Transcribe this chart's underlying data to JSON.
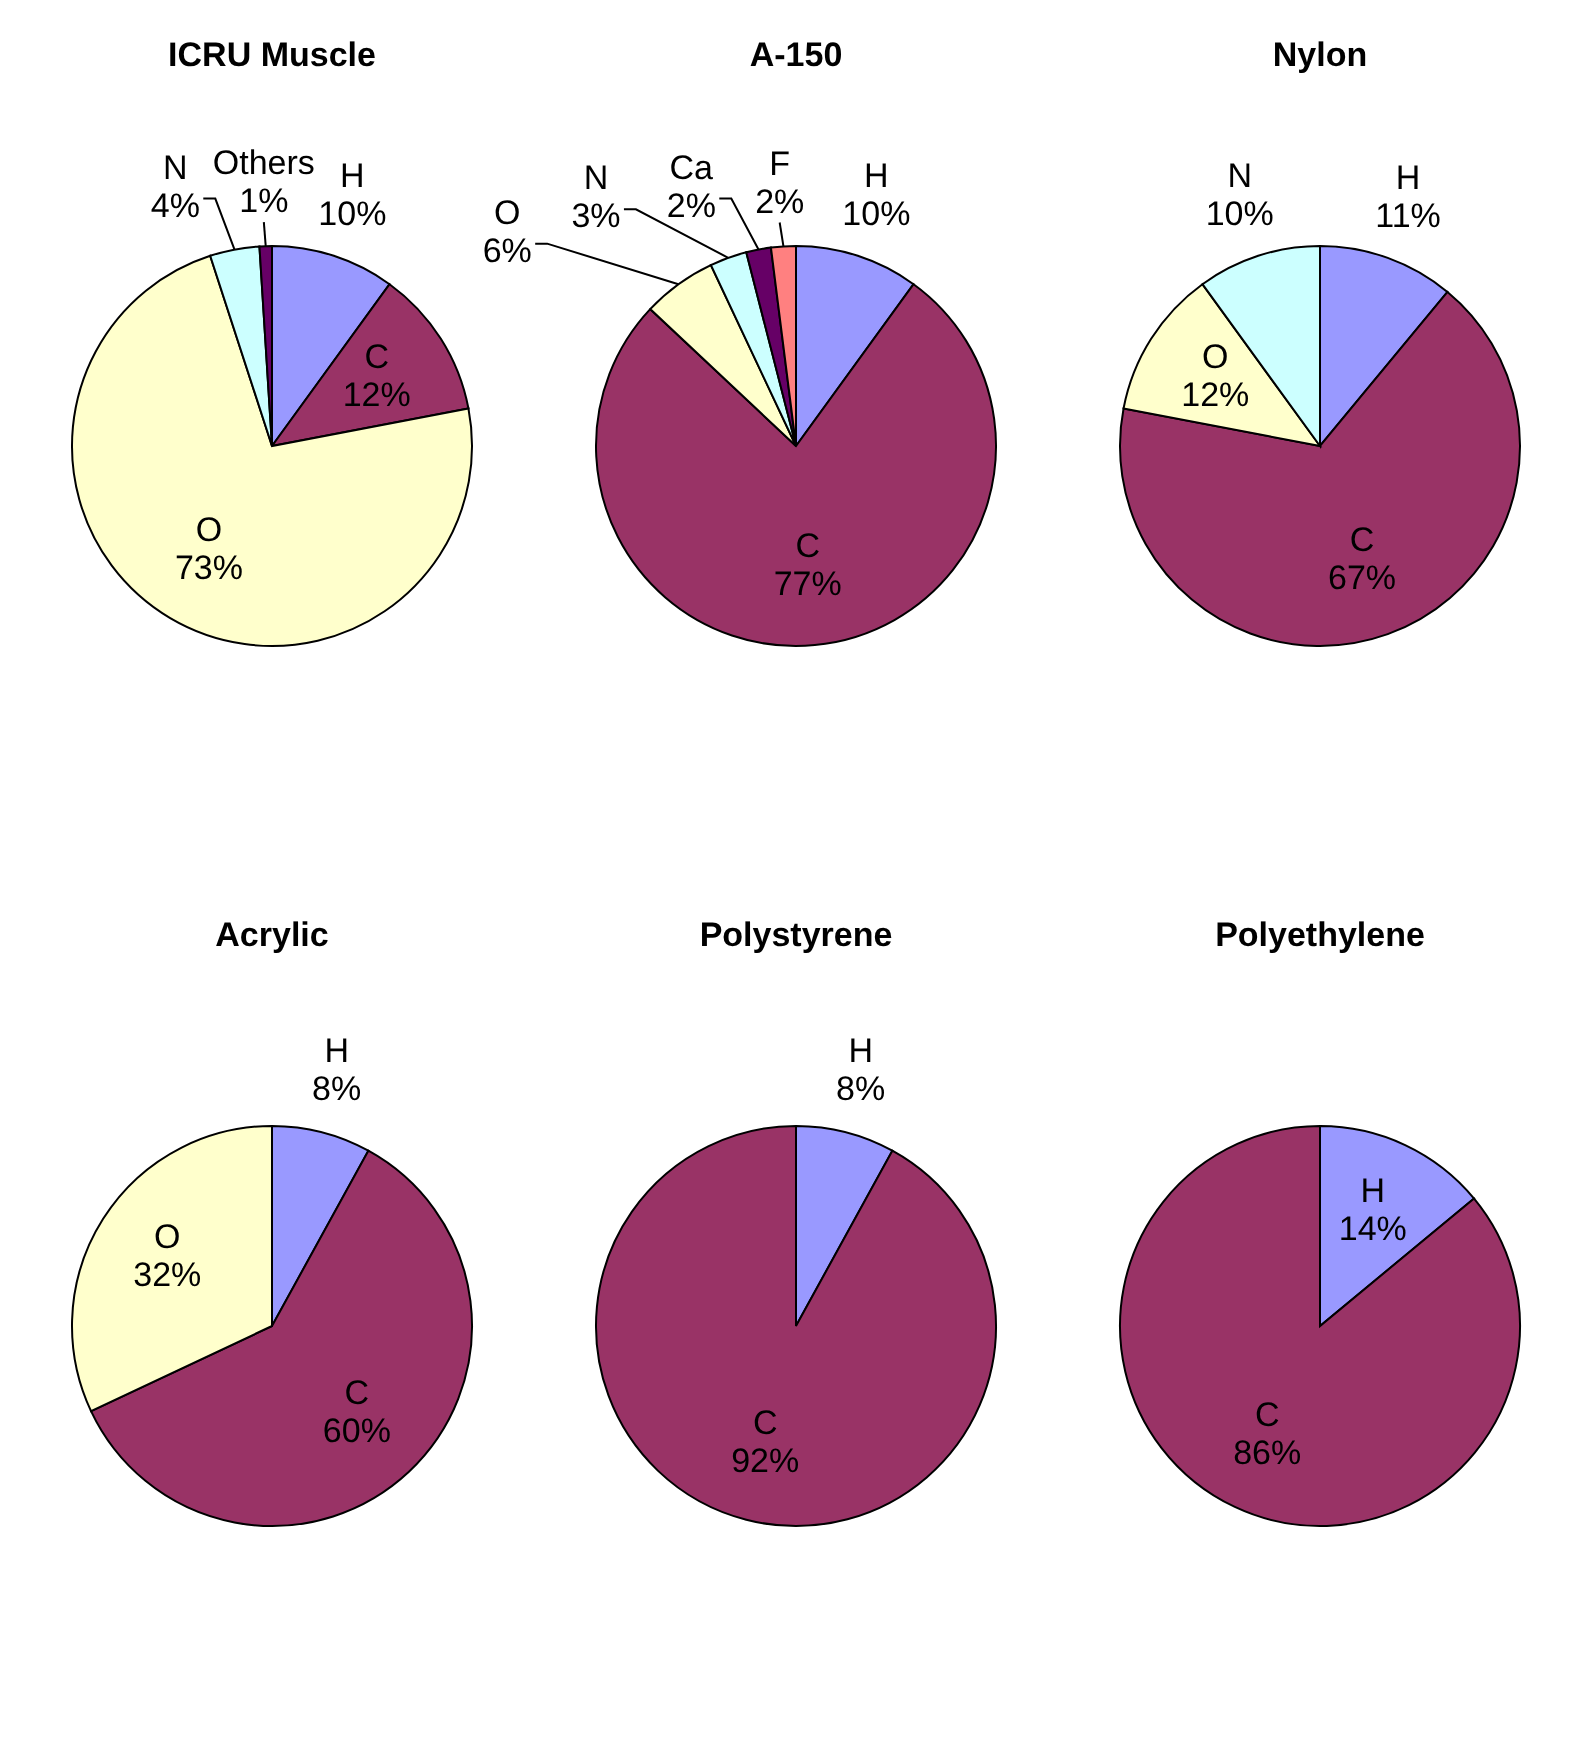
{
  "chart_data": [
    {
      "type": "pie",
      "title": "ICRU Muscle",
      "categories": [
        "H",
        "C",
        "O",
        "N",
        "Others"
      ],
      "values": [
        10,
        12,
        73,
        4,
        1
      ],
      "value_labels": [
        "10%",
        "12%",
        "73%",
        "4%",
        "1%"
      ],
      "colors": [
        "#9999ff",
        "#993366",
        "#ffffcc",
        "#ccffff",
        "#660066"
      ]
    },
    {
      "type": "pie",
      "title": "A-150",
      "categories": [
        "H",
        "C",
        "O",
        "N",
        "Ca",
        "F"
      ],
      "values": [
        10,
        77,
        6,
        3,
        2,
        2
      ],
      "value_labels": [
        "10%",
        "77%",
        "6%",
        "3%",
        "2%",
        "2%"
      ],
      "colors": [
        "#9999ff",
        "#993366",
        "#ffffcc",
        "#ccffff",
        "#660066",
        "#ff8080"
      ]
    },
    {
      "type": "pie",
      "title": "Nylon",
      "categories": [
        "H",
        "C",
        "O",
        "N"
      ],
      "values": [
        11,
        67,
        12,
        10
      ],
      "value_labels": [
        "11%",
        "67%",
        "12%",
        "10%"
      ],
      "colors": [
        "#9999ff",
        "#993366",
        "#ffffcc",
        "#ccffff"
      ]
    },
    {
      "type": "pie",
      "title": "Acrylic",
      "categories": [
        "H",
        "C",
        "O"
      ],
      "values": [
        8,
        60,
        32
      ],
      "value_labels": [
        "8%",
        "60%",
        "32%"
      ],
      "colors": [
        "#9999ff",
        "#993366",
        "#ffffcc"
      ]
    },
    {
      "type": "pie",
      "title": "Polystyrene",
      "categories": [
        "H",
        "C"
      ],
      "values": [
        8,
        92
      ],
      "value_labels": [
        "8%",
        "92%"
      ],
      "colors": [
        "#9999ff",
        "#993366"
      ]
    },
    {
      "type": "pie",
      "title": "Polyethylene",
      "categories": [
        "H",
        "C"
      ],
      "values": [
        14,
        86
      ],
      "value_labels": [
        "14%",
        "86%"
      ],
      "colors": [
        "#9999ff",
        "#993366"
      ]
    }
  ]
}
